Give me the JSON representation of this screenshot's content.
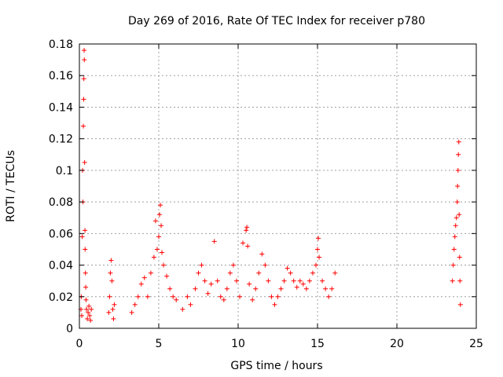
{
  "chart_data": {
    "type": "scatter",
    "title": "Day 269 of 2016, Rate Of TEC Index for receiver p780",
    "xlabel": "GPS time / hours",
    "ylabel": "ROTI / TECUs",
    "xlim": [
      0,
      25
    ],
    "ylim": [
      0,
      0.18
    ],
    "x_ticks": [
      0,
      5,
      10,
      15,
      20,
      25
    ],
    "y_ticks": [
      0,
      0.02,
      0.04,
      0.06,
      0.08,
      0.1,
      0.12,
      0.14,
      0.16,
      0.18
    ],
    "x_tick_labels": [
      "0",
      "5",
      "10",
      "15",
      "20",
      "25"
    ],
    "y_tick_labels": [
      "0",
      "0.02",
      "0.04",
      "0.06",
      "0.08",
      "0.1",
      "0.12",
      "0.14",
      "0.16",
      "0.18"
    ],
    "grid": true,
    "marker": "+",
    "marker_color": "#ff0000",
    "series": [
      {
        "name": "ROTI",
        "points": [
          [
            0.1,
            0.012
          ],
          [
            0.12,
            0.02
          ],
          [
            0.15,
            0.008
          ],
          [
            0.18,
            0.058
          ],
          [
            0.2,
            0.1
          ],
          [
            0.22,
            0.08
          ],
          [
            0.25,
            0.128
          ],
          [
            0.27,
            0.145
          ],
          [
            0.28,
            0.158
          ],
          [
            0.3,
            0.176
          ],
          [
            0.31,
            0.17
          ],
          [
            0.33,
            0.105
          ],
          [
            0.35,
            0.062
          ],
          [
            0.36,
            0.05
          ],
          [
            0.38,
            0.035
          ],
          [
            0.4,
            0.026
          ],
          [
            0.42,
            0.018
          ],
          [
            0.45,
            0.012
          ],
          [
            0.5,
            0.006
          ],
          [
            0.55,
            0.01
          ],
          [
            0.6,
            0.014
          ],
          [
            0.65,
            0.008
          ],
          [
            0.7,
            0.005
          ],
          [
            0.75,
            0.012
          ],
          [
            1.85,
            0.01
          ],
          [
            1.9,
            0.02
          ],
          [
            1.95,
            0.035
          ],
          [
            2.0,
            0.043
          ],
          [
            2.05,
            0.03
          ],
          [
            2.1,
            0.012
          ],
          [
            2.15,
            0.006
          ],
          [
            2.2,
            0.015
          ],
          [
            3.3,
            0.01
          ],
          [
            3.5,
            0.015
          ],
          [
            3.7,
            0.02
          ],
          [
            3.9,
            0.028
          ],
          [
            4.1,
            0.032
          ],
          [
            4.3,
            0.02
          ],
          [
            4.5,
            0.035
          ],
          [
            4.7,
            0.045
          ],
          [
            4.8,
            0.068
          ],
          [
            4.9,
            0.05
          ],
          [
            5.0,
            0.058
          ],
          [
            5.05,
            0.072
          ],
          [
            5.1,
            0.078
          ],
          [
            5.15,
            0.065
          ],
          [
            5.2,
            0.048
          ],
          [
            5.3,
            0.04
          ],
          [
            5.5,
            0.033
          ],
          [
            5.7,
            0.025
          ],
          [
            5.9,
            0.02
          ],
          [
            6.1,
            0.018
          ],
          [
            6.5,
            0.012
          ],
          [
            6.8,
            0.02
          ],
          [
            7.0,
            0.015
          ],
          [
            7.3,
            0.025
          ],
          [
            7.5,
            0.035
          ],
          [
            7.7,
            0.04
          ],
          [
            7.9,
            0.03
          ],
          [
            8.1,
            0.022
          ],
          [
            8.3,
            0.028
          ],
          [
            8.5,
            0.055
          ],
          [
            8.7,
            0.03
          ],
          [
            8.9,
            0.02
          ],
          [
            9.1,
            0.018
          ],
          [
            9.3,
            0.025
          ],
          [
            9.5,
            0.035
          ],
          [
            9.7,
            0.04
          ],
          [
            9.9,
            0.03
          ],
          [
            10.1,
            0.02
          ],
          [
            10.3,
            0.054
          ],
          [
            10.5,
            0.062
          ],
          [
            10.55,
            0.064
          ],
          [
            10.6,
            0.052
          ],
          [
            10.7,
            0.028
          ],
          [
            10.9,
            0.018
          ],
          [
            11.1,
            0.025
          ],
          [
            11.3,
            0.035
          ],
          [
            11.5,
            0.047
          ],
          [
            11.7,
            0.04
          ],
          [
            11.9,
            0.03
          ],
          [
            12.1,
            0.02
          ],
          [
            12.3,
            0.015
          ],
          [
            12.5,
            0.02
          ],
          [
            12.7,
            0.025
          ],
          [
            12.9,
            0.03
          ],
          [
            13.1,
            0.038
          ],
          [
            13.3,
            0.035
          ],
          [
            13.5,
            0.03
          ],
          [
            13.7,
            0.026
          ],
          [
            13.9,
            0.03
          ],
          [
            14.1,
            0.028
          ],
          [
            14.3,
            0.025
          ],
          [
            14.5,
            0.03
          ],
          [
            14.7,
            0.035
          ],
          [
            14.9,
            0.04
          ],
          [
            15.0,
            0.05
          ],
          [
            15.05,
            0.057
          ],
          [
            15.1,
            0.045
          ],
          [
            15.3,
            0.03
          ],
          [
            15.5,
            0.025
          ],
          [
            15.7,
            0.02
          ],
          [
            15.9,
            0.025
          ],
          [
            16.1,
            0.035
          ],
          [
            23.5,
            0.03
          ],
          [
            23.55,
            0.04
          ],
          [
            23.6,
            0.05
          ],
          [
            23.65,
            0.058
          ],
          [
            23.7,
            0.065
          ],
          [
            23.75,
            0.07
          ],
          [
            23.8,
            0.08
          ],
          [
            23.82,
            0.09
          ],
          [
            23.85,
            0.1
          ],
          [
            23.87,
            0.11
          ],
          [
            23.9,
            0.118
          ],
          [
            23.92,
            0.072
          ],
          [
            23.95,
            0.045
          ],
          [
            23.97,
            0.03
          ],
          [
            24.0,
            0.015
          ]
        ]
      }
    ]
  }
}
